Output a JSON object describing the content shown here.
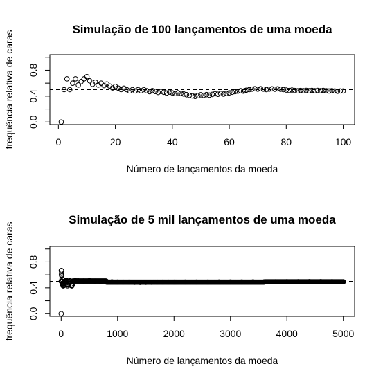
{
  "chart_data": [
    {
      "type": "scatter",
      "title": "Simulação de 100 lançamentos de uma moeda",
      "xlabel": "Número de lançamentos da moeda",
      "ylabel": "frequência relativa de caras",
      "xlim": [
        -3,
        104
      ],
      "ylim": [
        -0.04,
        1.04
      ],
      "xticks": [
        0,
        20,
        40,
        60,
        80,
        100
      ],
      "xtick_labels": [
        "0",
        "20",
        "40",
        "60",
        "80",
        "100"
      ],
      "yticks": [
        0,
        0.2,
        0.4,
        0.6,
        0.8,
        1.0
      ],
      "ytick_labels": [
        "0.0",
        "",
        "0.4",
        "",
        "0.8",
        ""
      ],
      "reference_line": 0.5,
      "x": [
        1,
        2,
        3,
        4,
        5,
        6,
        7,
        8,
        9,
        10,
        11,
        12,
        13,
        14,
        15,
        16,
        17,
        18,
        19,
        20,
        21,
        22,
        23,
        24,
        25,
        26,
        27,
        28,
        29,
        30,
        31,
        32,
        33,
        34,
        35,
        36,
        37,
        38,
        39,
        40,
        41,
        42,
        43,
        44,
        45,
        46,
        47,
        48,
        49,
        50,
        51,
        52,
        53,
        54,
        55,
        56,
        57,
        58,
        59,
        60,
        61,
        62,
        63,
        64,
        65,
        65.5,
        66,
        67,
        68,
        69,
        70,
        71,
        72,
        73,
        74,
        75,
        76,
        77,
        78,
        79,
        80,
        81,
        82,
        83,
        84,
        85,
        86,
        87,
        88,
        89,
        90,
        91,
        92,
        93,
        94,
        95,
        96,
        97,
        98,
        99,
        100
      ],
      "y": [
        0.0,
        0.5,
        0.667,
        0.5,
        0.6,
        0.667,
        0.571,
        0.625,
        0.667,
        0.7,
        0.636,
        0.583,
        0.615,
        0.571,
        0.6,
        0.563,
        0.588,
        0.556,
        0.526,
        0.55,
        0.524,
        0.5,
        0.522,
        0.5,
        0.48,
        0.5,
        0.481,
        0.5,
        0.483,
        0.5,
        0.484,
        0.469,
        0.485,
        0.471,
        0.457,
        0.472,
        0.459,
        0.447,
        0.462,
        0.45,
        0.439,
        0.452,
        0.442,
        0.432,
        0.422,
        0.413,
        0.404,
        0.396,
        0.408,
        0.42,
        0.412,
        0.423,
        0.415,
        0.426,
        0.436,
        0.429,
        0.439,
        0.431,
        0.441,
        0.45,
        0.459,
        0.468,
        0.476,
        0.484,
        0.477,
        0.485,
        0.492,
        0.5,
        0.507,
        0.514,
        0.507,
        0.514,
        0.507,
        0.5,
        0.507,
        0.513,
        0.506,
        0.513,
        0.506,
        0.5,
        0.494,
        0.488,
        0.494,
        0.488,
        0.482,
        0.488,
        0.483,
        0.489,
        0.483,
        0.489,
        0.484,
        0.489,
        0.484,
        0.489,
        0.484,
        0.479,
        0.484,
        0.48,
        0.475,
        0.48,
        0.48
      ]
    },
    {
      "type": "scatter",
      "title": "Simulação de 5 mil lançamentos de uma moeda",
      "xlabel": "Número de lançamentos da moeda",
      "ylabel": "frequência relativa de caras",
      "xlim": [
        -200,
        5200
      ],
      "ylim": [
        -0.04,
        1.04
      ],
      "xticks": [
        0,
        1000,
        2000,
        3000,
        4000,
        5000
      ],
      "xtick_labels": [
        "0",
        "1000",
        "2000",
        "3000",
        "4000",
        "5000"
      ],
      "yticks": [
        0,
        0.2,
        0.4,
        0.6,
        0.8,
        1.0
      ],
      "ytick_labels": [
        "0.0",
        "",
        "0.4",
        "",
        "0.8",
        ""
      ],
      "reference_line": 0.5,
      "x": [
        1,
        2,
        3,
        4,
        5,
        6,
        8,
        10,
        12,
        15,
        20,
        25,
        30,
        40,
        50,
        60,
        80,
        100,
        130,
        160,
        200,
        250,
        300,
        400,
        500,
        600,
        700,
        800,
        900,
        1000,
        1100,
        1200,
        1300,
        1400,
        1500,
        1600,
        1700,
        1800,
        1900,
        2000,
        2200,
        2400,
        2600,
        2800,
        3000,
        3200,
        3400,
        3600,
        3800,
        4000,
        4200,
        4400,
        4600,
        4800,
        5000
      ],
      "y": [
        0.0,
        0.5,
        0.667,
        0.5,
        0.6,
        0.667,
        0.625,
        0.6,
        0.583,
        0.533,
        0.45,
        0.44,
        0.467,
        0.475,
        0.48,
        0.5,
        0.513,
        0.51,
        0.5,
        0.506,
        0.5,
        0.512,
        0.507,
        0.505,
        0.51,
        0.503,
        0.497,
        0.494,
        0.492,
        0.489,
        0.488,
        0.487,
        0.484,
        0.483,
        0.485,
        0.486,
        0.487,
        0.487,
        0.488,
        0.488,
        0.489,
        0.489,
        0.489,
        0.49,
        0.49,
        0.49,
        0.491,
        0.492,
        0.493,
        0.494,
        0.494,
        0.495,
        0.495,
        0.494,
        0.493
      ]
    }
  ]
}
